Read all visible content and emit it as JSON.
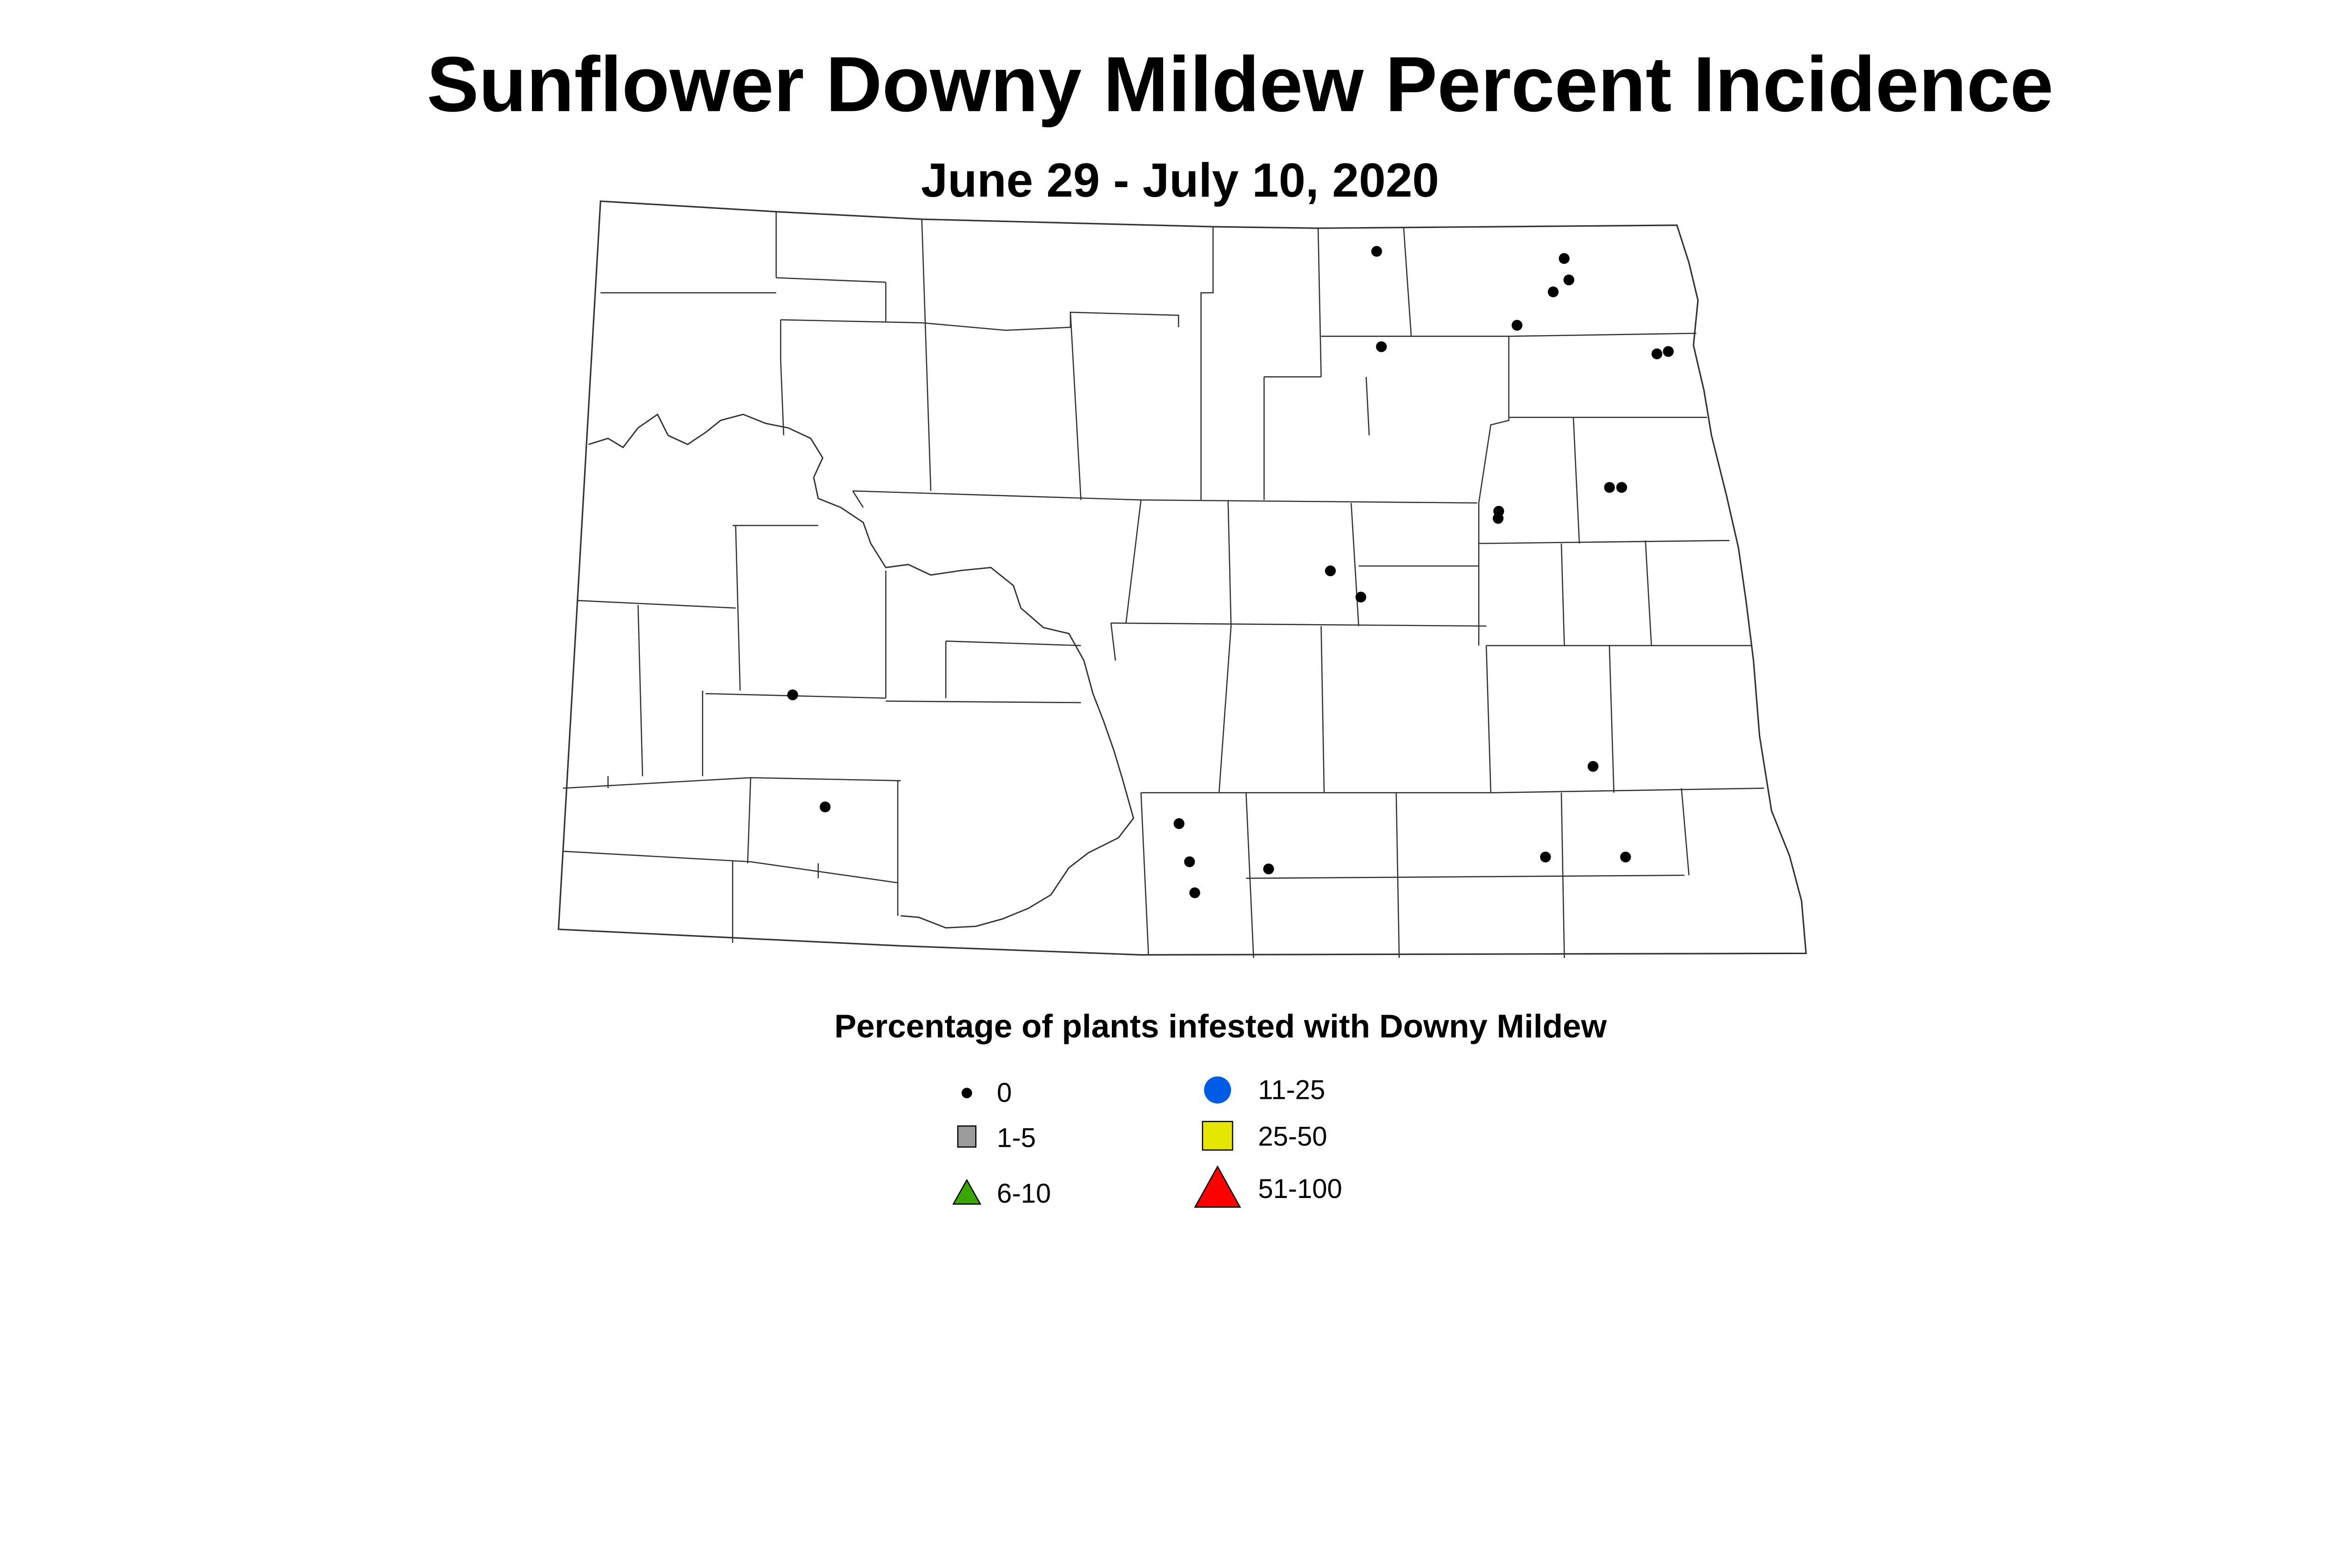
{
  "title": "Sunflower Downy Mildew Percent Incidence",
  "subtitle": "June 29 - July 10, 2020",
  "legend": {
    "title": "Percentage of plants infested with Downy Mildew",
    "items": [
      {
        "label": "0",
        "shape": "dot",
        "color": "#000000"
      },
      {
        "label": "1-5",
        "shape": "square",
        "color": "#9c9c9c"
      },
      {
        "label": "6-10",
        "shape": "triangle",
        "color": "#38a800"
      },
      {
        "label": "11-25",
        "shape": "circle",
        "color": "#005ce6"
      },
      {
        "label": "25-50",
        "shape": "square",
        "color": "#e6e600"
      },
      {
        "label": "51-100",
        "shape": "triangle",
        "color": "#ff0000"
      }
    ]
  },
  "sites": [
    {
      "lon": -98.66,
      "lat": 48.84,
      "value": 0
    },
    {
      "lon": -97.37,
      "lat": 48.81,
      "value": 0
    },
    {
      "lon": -97.36,
      "lat": 48.72,
      "value": 0
    },
    {
      "lon": -97.48,
      "lat": 48.67,
      "value": 0
    },
    {
      "lon": -97.76,
      "lat": 48.53,
      "value": 0
    },
    {
      "lon": -98.7,
      "lat": 48.44,
      "value": 0
    },
    {
      "lon": -96.84,
      "lat": 48.41,
      "value": 0
    },
    {
      "lon": -96.76,
      "lat": 48.42,
      "value": 0
    },
    {
      "lon": -97.3,
      "lat": 47.85,
      "value": 0
    },
    {
      "lon": -97.22,
      "lat": 47.85,
      "value": 0
    },
    {
      "lon": -98.05,
      "lat": 47.75,
      "value": 0
    },
    {
      "lon": -98.06,
      "lat": 47.72,
      "value": 0
    },
    {
      "lon": -99.19,
      "lat": 47.5,
      "value": 0
    },
    {
      "lon": -99.01,
      "lat": 47.39,
      "value": 0
    },
    {
      "lon": -102.66,
      "lat": 46.98,
      "value": 0
    },
    {
      "lon": -97.67,
      "lat": 46.68,
      "value": 0
    },
    {
      "lon": -102.45,
      "lat": 46.51,
      "value": 0
    },
    {
      "lon": -100.27,
      "lat": 46.44,
      "value": 0
    },
    {
      "lon": -100.22,
      "lat": 46.28,
      "value": 0
    },
    {
      "lon": -99.74,
      "lat": 46.25,
      "value": 0
    },
    {
      "lon": -100.2,
      "lat": 46.15,
      "value": 0
    },
    {
      "lon": -98.04,
      "lat": 46.3,
      "value": 0
    },
    {
      "lon": -97.55,
      "lat": 46.3,
      "value": 0
    }
  ]
}
